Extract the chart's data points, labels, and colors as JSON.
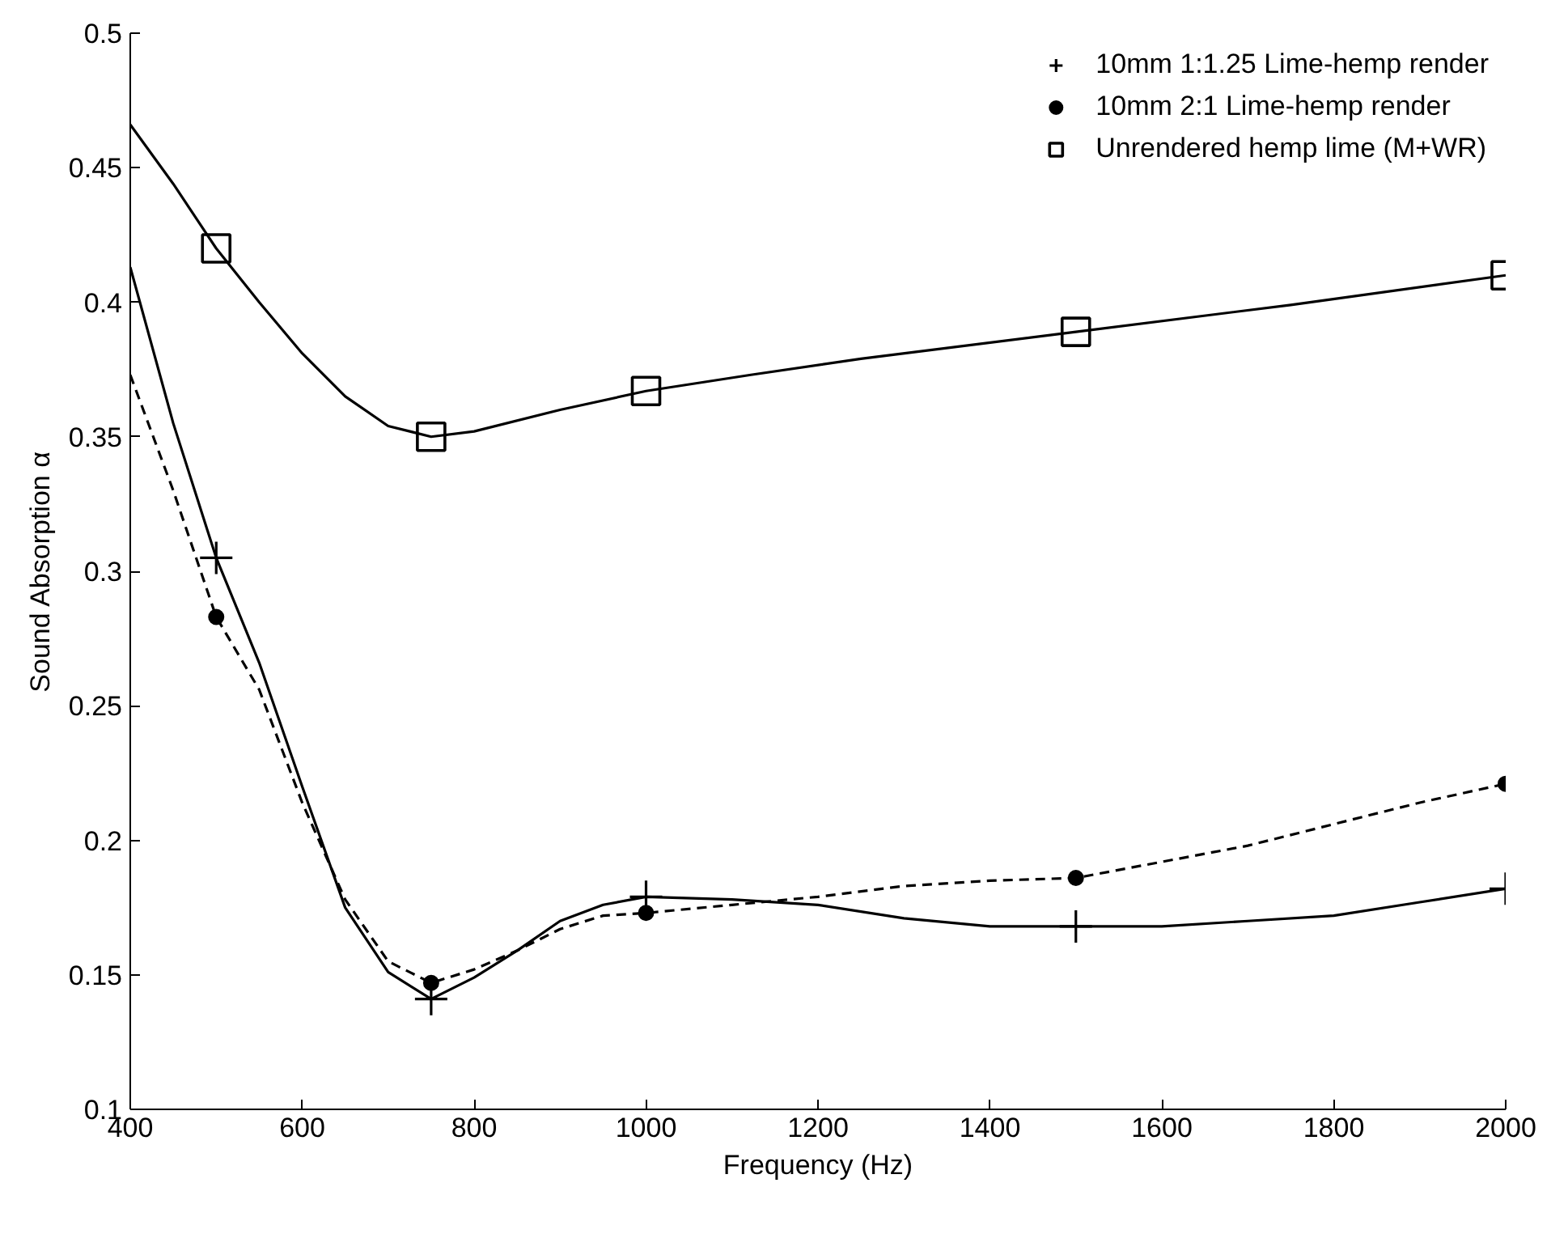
{
  "chart_data": {
    "type": "scatter",
    "xlabel": "Frequency (Hz)",
    "ylabel": "Sound Absorption α",
    "xlim": [
      400,
      2000
    ],
    "ylim": [
      0.1,
      0.5
    ],
    "xticks": [
      400,
      600,
      800,
      1000,
      1200,
      1400,
      1600,
      1800,
      2000
    ],
    "yticks": [
      0.1,
      0.15,
      0.2,
      0.25,
      0.3,
      0.35,
      0.4,
      0.45,
      0.5
    ],
    "grid": false,
    "legend": "top right",
    "series": [
      {
        "name": "10mm 1:1.25 Lime-hemp render",
        "marker": "cross",
        "color": "#000000",
        "x": [
          500,
          750,
          1000,
          1500,
          2000
        ],
        "values": [
          0.305,
          0.141,
          0.179,
          0.168,
          0.182
        ]
      },
      {
        "name": "10mm 2:1 Lime-hemp render",
        "marker": "circle",
        "color": "#000000",
        "x": [
          500,
          750,
          1000,
          1500,
          2000
        ],
        "values": [
          0.283,
          0.147,
          0.173,
          0.186,
          0.221
        ]
      },
      {
        "name": "Unrendered hemp lime (M+WR)",
        "marker": "square",
        "color": "#000000",
        "x": [
          500,
          750,
          1000,
          1500,
          2000
        ],
        "values": [
          0.42,
          0.35,
          0.367,
          0.389,
          0.41
        ]
      },
      {
        "type": "line",
        "line_style": "solid",
        "color": "#000000",
        "x": [
          400,
          450,
          500,
          550,
          600,
          650,
          700,
          750,
          800,
          850,
          900,
          950,
          1000,
          1100,
          1200,
          1300,
          1400,
          1500,
          1600,
          1700,
          1800,
          1900,
          2000
        ],
        "values": [
          0.413,
          0.355,
          0.305,
          0.266,
          0.22,
          0.175,
          0.151,
          0.141,
          0.149,
          0.159,
          0.17,
          0.176,
          0.179,
          0.178,
          0.176,
          0.171,
          0.168,
          0.168,
          0.168,
          0.17,
          0.172,
          0.177,
          0.182
        ]
      },
      {
        "type": "line",
        "line_style": "dashed",
        "color": "#000000",
        "x": [
          400,
          450,
          500,
          550,
          600,
          650,
          700,
          750,
          800,
          850,
          900,
          950,
          1000,
          1100,
          1200,
          1300,
          1400,
          1500,
          1600,
          1700,
          1800,
          1900,
          2000
        ],
        "values": [
          0.373,
          0.33,
          0.283,
          0.256,
          0.214,
          0.178,
          0.155,
          0.147,
          0.152,
          0.159,
          0.167,
          0.172,
          0.173,
          0.176,
          0.179,
          0.183,
          0.185,
          0.186,
          0.192,
          0.198,
          0.206,
          0.214,
          0.221
        ]
      },
      {
        "type": "line",
        "line_style": "solid",
        "color": "#000000",
        "x": [
          400,
          450,
          500,
          550,
          600,
          650,
          700,
          750,
          800,
          900,
          1000,
          1122,
          1250,
          1500,
          1750,
          2000
        ],
        "values": [
          0.466,
          0.444,
          0.42,
          0.4,
          0.381,
          0.365,
          0.354,
          0.35,
          0.352,
          0.36,
          0.367,
          0.373,
          0.379,
          0.389,
          0.399,
          0.41
        ]
      }
    ]
  }
}
